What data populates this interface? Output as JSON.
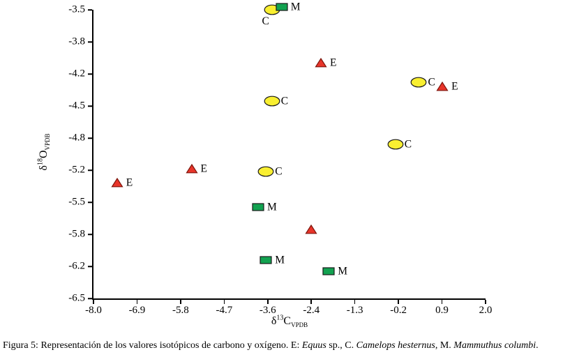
{
  "chart_data": {
    "type": "scatter",
    "title": "",
    "xlabel": "δ13C VPDB",
    "ylabel": "δ18O VPDB",
    "x_label_parts": {
      "delta": "δ",
      "sup": "13",
      "base": "C",
      "sub": "VPDB"
    },
    "y_label_parts": {
      "delta": "δ",
      "sup": "18",
      "base": "O",
      "sub": "VPDB"
    },
    "xlim": [
      -8.0,
      2.0
    ],
    "ylim": [
      -6.5,
      -3.5
    ],
    "x_ticks": [
      "-8.0",
      "-6.9",
      "-5.8",
      "-4.7",
      "-3.6",
      "-2.4",
      "-1.3",
      "-0.2",
      "0.9",
      "2.0"
    ],
    "y_ticks": [
      "-3.5",
      "-3.8",
      "-4.2",
      "-4.5",
      "-4.8",
      "-5.2",
      "-5.5",
      "-5.8",
      "-6.2",
      "-6.5"
    ],
    "grid": false,
    "legend": "none (points labeled inline with E, C, M)",
    "series": [
      {
        "name": "Equus sp.",
        "code": "E",
        "marker": "triangle",
        "color": "#e8352a",
        "edge_color": "#7c150c",
        "points": [
          {
            "x": -7.4,
            "y": -5.3,
            "label": "E"
          },
          {
            "x": -5.5,
            "y": -5.15,
            "label": "E"
          },
          {
            "x": -2.45,
            "y": -5.78,
            "label": ""
          },
          {
            "x": -2.2,
            "y": -4.05,
            "label": "E"
          },
          {
            "x": 0.9,
            "y": -4.3,
            "label": "E"
          }
        ]
      },
      {
        "name": "Camelops hesternus",
        "code": "C",
        "marker": "ellipse",
        "color": "#f9ef31",
        "edge_color": "#1a1a1a",
        "points": [
          {
            "x": -3.45,
            "y": -3.5,
            "label": "C",
            "label_pos": "below"
          },
          {
            "x": 0.3,
            "y": -4.25,
            "label": "C"
          },
          {
            "x": -3.45,
            "y": -4.45,
            "label": "C"
          },
          {
            "x": -0.3,
            "y": -4.9,
            "label": "C"
          },
          {
            "x": -3.6,
            "y": -5.18,
            "label": "C"
          }
        ]
      },
      {
        "name": "Mammuthus columbi",
        "code": "M",
        "marker": "square",
        "color": "#12a250",
        "edge_color": "#1a1a1a",
        "points": [
          {
            "x": -3.2,
            "y": -3.47,
            "label": "M"
          },
          {
            "x": -3.8,
            "y": -5.55,
            "label": "M"
          },
          {
            "x": -3.6,
            "y": -6.1,
            "label": "M"
          },
          {
            "x": -2.0,
            "y": -6.22,
            "label": "M"
          }
        ]
      }
    ]
  },
  "caption": {
    "parts": [
      "Figura 5: Representación de los valores isotópicos de carbono y oxígeno. E: ",
      "Equus",
      " sp., C. ",
      "Camelops hesternus",
      ", M. ",
      "Mammuthus columbi",
      "."
    ]
  }
}
